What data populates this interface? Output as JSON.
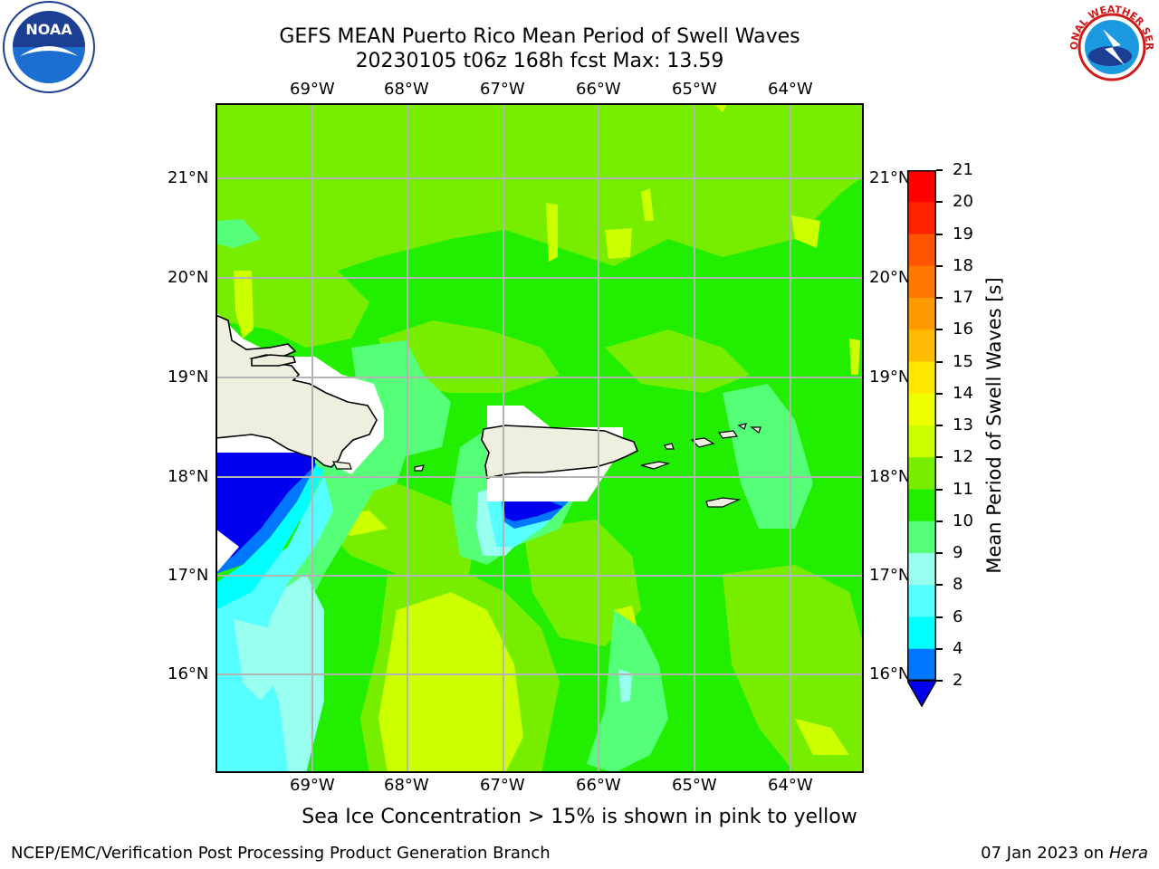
{
  "header": {
    "title_line1": "GEFS MEAN Puerto Rico Mean Period of Swell Waves",
    "title_line2": "20230105 t06z 168h fcst   Max: 13.59"
  },
  "map": {
    "lon_labels": [
      "69°W",
      "68°W",
      "67°W",
      "66°W",
      "65°W",
      "64°W"
    ],
    "lat_labels": [
      "21°N",
      "20°N",
      "19°N",
      "18°N",
      "17°N",
      "16°N"
    ],
    "land_color": "#efefdf",
    "gridline_color": "#b4b4b4"
  },
  "colorbar": {
    "label": "Mean Period of Swell Waves [s]",
    "ticks": [
      "21",
      "20",
      "19",
      "18",
      "17",
      "16",
      "15",
      "14",
      "13",
      "12",
      "11",
      "10",
      "9",
      "8",
      "6",
      "4",
      "2"
    ],
    "colors": [
      "#ff0000",
      "#ff2200",
      "#ff5500",
      "#ff7700",
      "#ff9900",
      "#ffbb00",
      "#ffe800",
      "#eeff00",
      "#ccff00",
      "#77ee00",
      "#22ee00",
      "#55ff77",
      "#99ffee",
      "#55ffff",
      "#00ffff",
      "#0077ff"
    ],
    "underflow_color": "#0000ee"
  },
  "caption": "Sea Ice Concentration > 15% is shown in pink to yellow",
  "footer": {
    "left": "NCEP/EMC/Verification Post Processing Product Generation Branch",
    "date": "07 Jan 2023 on ",
    "machine": "Hera"
  },
  "logos": {
    "noaa_text": "NOAA",
    "nws_text": "NATIONAL WEATHER SERVICE"
  }
}
